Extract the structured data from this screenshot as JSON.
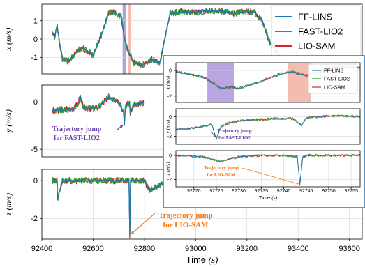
{
  "chart_data": [
    {
      "type": "line",
      "panel": "main-x",
      "ylabel": "x (m/s)",
      "xlim": [
        92400,
        93650
      ],
      "ylim": [
        -1.9,
        1.9
      ],
      "yticks": [
        "1",
        "0",
        "-1"
      ],
      "series": [
        {
          "name": "FF-LINS",
          "color": "#1f77b4",
          "x": [
            92440,
            92450,
            92460,
            92470,
            92480,
            92500,
            92520,
            92540,
            92560,
            92600,
            92640,
            92660,
            92680,
            92700,
            92710,
            92720,
            92730,
            92740,
            92760,
            92800,
            92830,
            92860,
            92900,
            92950,
            93000,
            93050,
            93100,
            93150,
            93200,
            93230,
            93260,
            93290,
            93320,
            93340,
            93380,
            93420,
            93460,
            93500,
            93540,
            93580,
            93620,
            93650
          ],
          "y": [
            0.4,
            0.1,
            0.7,
            -0.3,
            -1.1,
            -1.2,
            -1.0,
            -0.6,
            -0.5,
            -0.9,
            0.5,
            1.4,
            1.5,
            1.3,
            1.2,
            0.2,
            -0.4,
            -0.8,
            -1.3,
            -1.4,
            -1.1,
            -1.3,
            1.4,
            1.5,
            1.45,
            1.55,
            1.5,
            1.4,
            1.5,
            1.45,
            1.0,
            -0.2,
            -0.7,
            -1.3,
            -1.5,
            -1.4,
            -1.5,
            -1.2,
            -1.6,
            -1.5,
            -1.55,
            -1.5
          ]
        },
        {
          "name": "FAST-LIO2",
          "color": "#2ca02c",
          "x": [
            92440,
            92450,
            92460,
            92470,
            92480,
            92500,
            92520,
            92540,
            92560,
            92600,
            92640,
            92660,
            92680,
            92700,
            92710,
            92720,
            92730,
            92740,
            92760,
            92800,
            92830,
            92860,
            92900,
            92950,
            93000,
            93050,
            93100,
            93150,
            93200,
            93230,
            93260,
            93290,
            93320,
            93340,
            93380,
            93420,
            93460,
            93500,
            93540,
            93580,
            93620,
            93650
          ],
          "y": [
            0.4,
            0.1,
            0.7,
            -0.3,
            -1.1,
            -1.2,
            -1.0,
            -0.6,
            -0.5,
            -0.9,
            0.5,
            1.4,
            1.5,
            1.3,
            1.2,
            0.2,
            -0.4,
            -0.8,
            -1.3,
            -1.4,
            -1.1,
            -1.3,
            1.4,
            1.5,
            1.45,
            1.55,
            1.5,
            1.4,
            1.5,
            1.45,
            1.0,
            -0.2,
            -0.7,
            -1.3,
            -1.5,
            -1.4,
            -1.5,
            -1.2,
            -1.6,
            -1.5,
            -1.55,
            -1.5
          ]
        },
        {
          "name": "LIO-SAM",
          "color": "#d62728",
          "x": [
            92440,
            92450,
            92460,
            92470,
            92480,
            92500,
            92520,
            92540,
            92560,
            92600,
            92640,
            92660,
            92680,
            92700,
            92710,
            92720,
            92730,
            92740,
            92760,
            92800,
            92830,
            92860,
            92900,
            92950,
            93000,
            93050,
            93100,
            93150,
            93200,
            93230,
            93260,
            93290,
            93320,
            93340,
            93380,
            93420,
            93460,
            93500,
            93540,
            93580,
            93620,
            93650
          ],
          "y": [
            0.4,
            0.1,
            0.7,
            -0.3,
            -1.1,
            -1.2,
            -1.0,
            -0.6,
            -0.5,
            -0.9,
            0.5,
            1.4,
            1.5,
            1.3,
            1.2,
            0.2,
            -0.4,
            -0.8,
            -1.3,
            -1.4,
            -1.1,
            -1.3,
            1.4,
            1.5,
            1.45,
            1.55,
            1.5,
            1.4,
            1.5,
            1.45,
            1.0,
            -0.2,
            -0.7,
            -1.3,
            -1.5,
            -1.4,
            -1.5,
            -1.2,
            -1.6,
            -1.5,
            -1.55,
            -1.5
          ]
        }
      ],
      "legend": {
        "placement": "top-right",
        "entries": [
          "FF-LINS",
          "FAST-LIO2",
          "LIO-SAM"
        ]
      },
      "highlights": [
        {
          "from": 92715,
          "to": 92728,
          "color": "#9b7fd4"
        },
        {
          "from": 92738,
          "to": 92748,
          "color": "#f0a090"
        }
      ]
    },
    {
      "type": "line",
      "panel": "main-y",
      "ylabel": "y (m/s)",
      "xlim": [
        92400,
        93650
      ],
      "ylim": [
        -5.8,
        1.8
      ],
      "yticks": [
        "0",
        "-5"
      ],
      "series": [
        {
          "name": "FF-LINS",
          "color": "#1f77b4",
          "x": [
            92440,
            92480,
            92520,
            92540,
            92550,
            92560,
            92580,
            92620,
            92660,
            92700,
            92718,
            92722,
            92726,
            92730,
            92742,
            92745,
            92760,
            92800
          ],
          "y": [
            -0.9,
            -0.8,
            -0.8,
            -0.2,
            0.6,
            -0.5,
            -0.7,
            -0.6,
            0.6,
            -0.1,
            -1.0,
            -2.3,
            -0.6,
            -0.3,
            -0.1,
            -1.3,
            -0.2,
            -0.1
          ]
        },
        {
          "name": "FAST-LIO2",
          "color": "#2ca02c",
          "x": [
            92440,
            92480,
            92520,
            92540,
            92550,
            92560,
            92580,
            92620,
            92660,
            92700,
            92718,
            92722,
            92726,
            92730,
            92742,
            92745,
            92760,
            92800
          ],
          "y": [
            -0.9,
            -0.8,
            -0.8,
            -0.2,
            0.6,
            -0.5,
            -0.7,
            -0.6,
            0.6,
            -0.1,
            -1.0,
            -2.3,
            -0.6,
            -0.3,
            -0.1,
            -1.3,
            -0.2,
            -0.1
          ]
        },
        {
          "name": "LIO-SAM",
          "color": "#d62728",
          "x": [
            92440,
            92480,
            92520,
            92540,
            92550,
            92560,
            92580,
            92620,
            92660,
            92700,
            92718,
            92722,
            92726,
            92730,
            92742,
            92745,
            92760,
            92800
          ],
          "y": [
            -0.9,
            -0.8,
            -0.8,
            -0.2,
            0.6,
            -0.5,
            -0.7,
            -0.6,
            0.6,
            -0.1,
            -1.0,
            -2.3,
            -0.6,
            -0.3,
            -0.1,
            -1.3,
            -0.2,
            -0.1
          ]
        }
      ],
      "annotations": [
        {
          "text": [
            "Trajectory jump",
            "for FAST-LIO2"
          ],
          "color": "#6a3fb0",
          "points_to": [
            92722,
            -2.3
          ]
        }
      ]
    },
    {
      "type": "line",
      "panel": "main-z",
      "ylabel": "z (m/s)",
      "xlabel": "Time (s)",
      "xlim": [
        92400,
        93650
      ],
      "ylim": [
        -3.1,
        0.6
      ],
      "xticks": [
        "92400",
        "92600",
        "92800",
        "93000",
        "93200",
        "93400",
        "93600"
      ],
      "xtick_values": [
        92400,
        92600,
        92800,
        93000,
        93200,
        93400,
        93600
      ],
      "yticks": [
        "0",
        "-2"
      ],
      "series": [
        {
          "name": "FF-LINS",
          "color": "#1f77b4",
          "x": [
            92440,
            92460,
            92460.5,
            92480,
            92600,
            92700,
            92740,
            92743,
            92746,
            92800,
            92820,
            92900,
            93000,
            93100
          ],
          "y": [
            0,
            0,
            -1.0,
            0,
            0,
            0,
            0,
            -2.9,
            0,
            0,
            -0.5,
            0,
            0,
            0
          ]
        },
        {
          "name": "FAST-LIO2",
          "color": "#2ca02c",
          "x": [
            92440,
            92460,
            92460.5,
            92480,
            92600,
            92700,
            92740,
            92743,
            92746,
            92800,
            92820,
            92900,
            93000,
            93100
          ],
          "y": [
            0,
            0,
            -1.0,
            0,
            0,
            0,
            0,
            -2.9,
            0,
            0,
            -0.5,
            0,
            0,
            0
          ]
        },
        {
          "name": "LIO-SAM",
          "color": "#d62728",
          "x": [
            92440,
            92460,
            92460.5,
            92480,
            92600,
            92700,
            92740,
            92743,
            92746,
            92800,
            92820,
            92900,
            93000,
            93100
          ],
          "y": [
            0,
            0,
            -1.0,
            0,
            0,
            0,
            0,
            -2.9,
            0,
            0,
            -0.5,
            0,
            0,
            0
          ]
        }
      ],
      "annotations": [
        {
          "text": [
            "Trajectory jump",
            "for LIO-SAM"
          ],
          "color": "#f07a1a",
          "points_to": [
            92743,
            -2.9
          ]
        }
      ]
    },
    {
      "type": "line",
      "panel": "inset-x",
      "ylabel": "x (m/s)",
      "xlim": [
        92716,
        92757
      ],
      "ylim": [
        -2.5,
        0.6
      ],
      "yticks": [
        "0",
        "-2"
      ],
      "series": [
        {
          "name": "FF-LINS",
          "color": "#1f77b4",
          "x": [
            92716,
            92719,
            92722,
            92724,
            92726,
            92728,
            92730,
            92733,
            92736,
            92739,
            92742,
            92745,
            92748,
            92751,
            92754,
            92757
          ],
          "y": [
            -0.1,
            -0.3,
            -0.5,
            -0.9,
            -1.4,
            -1.3,
            -1.4,
            -1.1,
            -0.7,
            -0.3,
            -0.1,
            -0.4,
            -0.1,
            0.2,
            0.3,
            0.2
          ]
        },
        {
          "name": "FAST-LIO2",
          "color": "#2ca02c",
          "x": [
            92716,
            92719,
            92722,
            92724,
            92726,
            92728,
            92730,
            92733,
            92736,
            92739,
            92742,
            92745,
            92748,
            92751,
            92754,
            92757
          ],
          "y": [
            -0.1,
            -0.3,
            -0.5,
            -0.9,
            -1.4,
            -1.3,
            -1.4,
            -1.1,
            -0.7,
            -0.3,
            -0.1,
            -0.4,
            -0.1,
            0.2,
            0.3,
            0.2
          ]
        },
        {
          "name": "LIO-SAM",
          "color": "#d62728",
          "x": [
            92716,
            92719,
            92722,
            92724,
            92726,
            92728,
            92730,
            92733,
            92736,
            92739,
            92742,
            92745,
            92748,
            92751,
            92754,
            92757
          ],
          "y": [
            -0.1,
            -0.3,
            -0.5,
            -0.9,
            -1.4,
            -1.3,
            -1.4,
            -1.1,
            -0.7,
            -0.3,
            -0.1,
            -0.4,
            -0.1,
            0.2,
            0.3,
            0.2
          ]
        }
      ],
      "legend": {
        "placement": "top-right",
        "entries": [
          "FF-LINS",
          "FAST-LIO2",
          "LIO-SAM"
        ]
      },
      "highlights": [
        {
          "from": 92723,
          "to": 92729,
          "color": "#9b7fd4"
        },
        {
          "from": 92741,
          "to": 92746,
          "color": "#f0a090"
        }
      ]
    },
    {
      "type": "line",
      "panel": "inset-y",
      "ylabel": "y (m/s)",
      "xlim": [
        92716,
        92757
      ],
      "ylim": [
        -2.8,
        0.8
      ],
      "yticks": [
        "0",
        "-2"
      ],
      "series": [
        {
          "name": "FF-LINS",
          "color": "#1f77b4",
          "x": [
            92716,
            92719,
            92722,
            92724,
            92725,
            92726,
            92728,
            92731,
            92734,
            92738,
            92742,
            92744,
            92745,
            92748,
            92752,
            92757
          ],
          "y": [
            -1.3,
            -1.2,
            -1.0,
            -0.8,
            -2.2,
            -1.0,
            -0.6,
            -0.4,
            -0.3,
            -0.2,
            -0.2,
            -0.9,
            -0.1,
            0.0,
            0.1,
            0.0
          ]
        },
        {
          "name": "FAST-LIO2",
          "color": "#2ca02c",
          "x": [
            92716,
            92719,
            92722,
            92724,
            92725,
            92726,
            92728,
            92731,
            92734,
            92738,
            92742,
            92744,
            92745,
            92748,
            92752,
            92757
          ],
          "y": [
            -1.3,
            -1.2,
            -1.0,
            -0.8,
            -2.2,
            -1.0,
            -0.6,
            -0.4,
            -0.3,
            -0.2,
            -0.2,
            -0.9,
            -0.1,
            0.0,
            0.1,
            0.0
          ]
        },
        {
          "name": "LIO-SAM",
          "color": "#d62728",
          "x": [
            92716,
            92719,
            92722,
            92724,
            92725,
            92726,
            92728,
            92731,
            92734,
            92738,
            92742,
            92744,
            92745,
            92748,
            92752,
            92757
          ],
          "y": [
            -1.3,
            -1.2,
            -1.0,
            -0.8,
            -2.2,
            -1.0,
            -0.6,
            -0.4,
            -0.3,
            -0.2,
            -0.2,
            -0.9,
            -0.1,
            0.0,
            0.1,
            0.0
          ]
        }
      ],
      "annotations": [
        {
          "text": [
            "Trajectory jump",
            "for FAST-LIO2"
          ],
          "color": "#6a3fb0",
          "points_to": [
            92725,
            -2.2
          ]
        }
      ]
    },
    {
      "type": "line",
      "panel": "inset-z",
      "ylabel": "z (m/s)",
      "xlabel": "Time (s)",
      "xlim": [
        92716,
        92757
      ],
      "ylim": [
        -2.6,
        0.4
      ],
      "xticks": [
        "92720",
        "92725",
        "92730",
        "92735",
        "92740",
        "92745",
        "92750",
        "92755"
      ],
      "xtick_values": [
        92720,
        92725,
        92730,
        92735,
        92740,
        92745,
        92750,
        92755
      ],
      "yticks": [
        "0",
        "-2"
      ],
      "series": [
        {
          "name": "FF-LINS",
          "color": "#1f77b4",
          "x": [
            92716,
            92722,
            92726,
            92730,
            92735,
            92740,
            92743,
            92743.6,
            92744.2,
            92745,
            92750,
            92757
          ],
          "y": [
            0,
            -0.1,
            -0.5,
            -0.1,
            0,
            0,
            -0.1,
            -2.4,
            -0.2,
            0,
            0,
            0
          ]
        },
        {
          "name": "FAST-LIO2",
          "color": "#2ca02c",
          "x": [
            92716,
            92722,
            92726,
            92730,
            92735,
            92740,
            92743,
            92743.6,
            92744.2,
            92745,
            92750,
            92757
          ],
          "y": [
            0,
            -0.1,
            -0.5,
            -0.1,
            0,
            0,
            -0.1,
            -2.4,
            -0.2,
            0,
            0,
            0
          ]
        },
        {
          "name": "LIO-SAM",
          "color": "#d62728",
          "x": [
            92716,
            92722,
            92726,
            92730,
            92735,
            92740,
            92743,
            92743.6,
            92744.2,
            92745,
            92750,
            92757
          ],
          "y": [
            0,
            -0.1,
            -0.5,
            -0.1,
            0,
            0,
            -0.1,
            -2.4,
            -0.2,
            0,
            0,
            0
          ]
        }
      ],
      "annotations": [
        {
          "text": [
            "Trajectory jump",
            "for LIO-SAM"
          ],
          "color": "#f07a1a",
          "points_to": [
            92743.6,
            -2.4
          ]
        }
      ]
    }
  ]
}
